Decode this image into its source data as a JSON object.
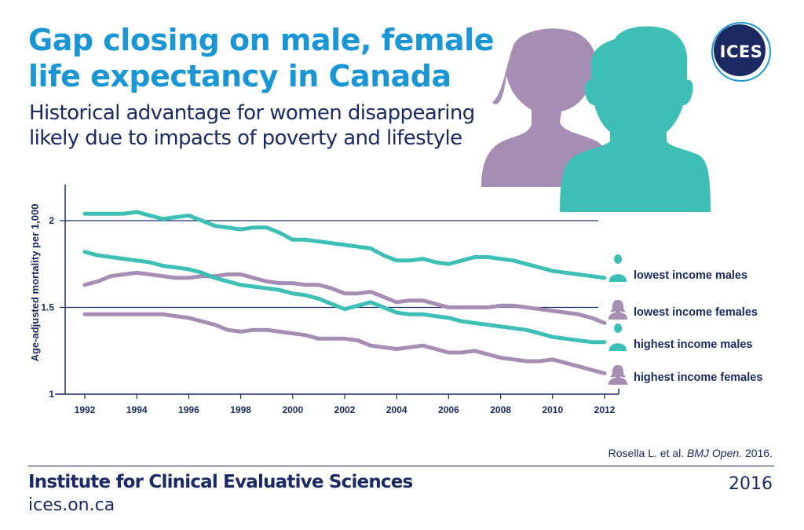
{
  "header": {
    "title_line1": "Gap closing on male, female",
    "title_line2": "life expectancy in Canada",
    "subtitle_line1": "Historical advantage for women disappearing",
    "subtitle_line2": "likely due to impacts of poverty and lifestyle"
  },
  "logo": {
    "text": "ICES"
  },
  "colors": {
    "teal": "#3dbfb5",
    "purple": "#a58db3",
    "navy": "#1b2a63",
    "title_blue": "#1a96d4"
  },
  "icons": {
    "female": "female-silhouette-icon",
    "male": "male-silhouette-icon"
  },
  "chart_data": {
    "type": "line",
    "xlabel": "",
    "ylabel": "Age-adjusted mortality per 1,000",
    "xlim": [
      1992,
      2012
    ],
    "ylim": [
      1,
      2.2
    ],
    "x_ticks": [
      "1992",
      "1994",
      "1996",
      "1998",
      "2000",
      "2002",
      "2004",
      "2006",
      "2008",
      "2010",
      "2012"
    ],
    "y_ticks": [
      "1",
      "1.5",
      "2"
    ],
    "gridlines_y": [
      1.5,
      2
    ],
    "legend_placement": "right",
    "series": [
      {
        "name": "lowest income males",
        "color": "#3dbfb5",
        "x": [
          1992,
          1992.5,
          1993,
          1993.5,
          1994,
          1994.5,
          1995,
          1995.5,
          1996,
          1996.5,
          1997,
          1997.5,
          1998,
          1998.5,
          1999,
          1999.5,
          2000,
          2000.5,
          2001,
          2001.5,
          2002,
          2002.5,
          2003,
          2003.5,
          2004,
          2004.5,
          2005,
          2005.5,
          2006,
          2006.5,
          2007,
          2007.5,
          2008,
          2008.5,
          2009,
          2009.5,
          2010,
          2010.5,
          2011,
          2011.5,
          2012
        ],
        "y": [
          2.04,
          2.04,
          2.04,
          2.04,
          2.05,
          2.03,
          2.01,
          2.02,
          2.03,
          2.0,
          1.97,
          1.96,
          1.95,
          1.96,
          1.96,
          1.93,
          1.89,
          1.89,
          1.88,
          1.87,
          1.86,
          1.85,
          1.84,
          1.8,
          1.77,
          1.77,
          1.78,
          1.76,
          1.75,
          1.77,
          1.79,
          1.79,
          1.78,
          1.77,
          1.75,
          1.73,
          1.71,
          1.7,
          1.69,
          1.68,
          1.67
        ]
      },
      {
        "name": "lowest income females",
        "color": "#a58db3",
        "x": [
          1992,
          1992.5,
          1993,
          1993.5,
          1994,
          1994.5,
          1995,
          1995.5,
          1996,
          1996.5,
          1997,
          1997.5,
          1998,
          1998.5,
          1999,
          1999.5,
          2000,
          2000.5,
          2001,
          2001.5,
          2002,
          2002.5,
          2003,
          2003.5,
          2004,
          2004.5,
          2005,
          2005.5,
          2006,
          2006.5,
          2007,
          2007.5,
          2008,
          2008.5,
          2009,
          2009.5,
          2010,
          2010.5,
          2011,
          2011.5,
          2012
        ],
        "y": [
          1.63,
          1.65,
          1.68,
          1.69,
          1.7,
          1.69,
          1.68,
          1.67,
          1.67,
          1.68,
          1.68,
          1.69,
          1.69,
          1.67,
          1.65,
          1.64,
          1.64,
          1.63,
          1.63,
          1.61,
          1.58,
          1.58,
          1.59,
          1.56,
          1.53,
          1.54,
          1.54,
          1.52,
          1.5,
          1.5,
          1.5,
          1.5,
          1.51,
          1.51,
          1.5,
          1.49,
          1.48,
          1.47,
          1.46,
          1.44,
          1.41
        ]
      },
      {
        "name": "highest income males",
        "color": "#3dbfb5",
        "x": [
          1992,
          1992.5,
          1993,
          1993.5,
          1994,
          1994.5,
          1995,
          1995.5,
          1996,
          1996.5,
          1997,
          1997.5,
          1998,
          1998.5,
          1999,
          1999.5,
          2000,
          2000.5,
          2001,
          2001.5,
          2002,
          2002.5,
          2003,
          2003.5,
          2004,
          2004.5,
          2005,
          2005.5,
          2006,
          2006.5,
          2007,
          2007.5,
          2008,
          2008.5,
          2009,
          2009.5,
          2010,
          2010.5,
          2011,
          2011.5,
          2012
        ],
        "y": [
          1.82,
          1.8,
          1.79,
          1.78,
          1.77,
          1.76,
          1.74,
          1.73,
          1.72,
          1.7,
          1.67,
          1.65,
          1.63,
          1.62,
          1.61,
          1.6,
          1.58,
          1.57,
          1.55,
          1.52,
          1.49,
          1.51,
          1.53,
          1.5,
          1.47,
          1.46,
          1.46,
          1.45,
          1.44,
          1.42,
          1.41,
          1.4,
          1.39,
          1.38,
          1.37,
          1.35,
          1.33,
          1.32,
          1.31,
          1.3,
          1.3
        ]
      },
      {
        "name": "highest income females",
        "color": "#a58db3",
        "x": [
          1992,
          1992.5,
          1993,
          1993.5,
          1994,
          1994.5,
          1995,
          1995.5,
          1996,
          1996.5,
          1997,
          1997.5,
          1998,
          1998.5,
          1999,
          1999.5,
          2000,
          2000.5,
          2001,
          2001.5,
          2002,
          2002.5,
          2003,
          2003.5,
          2004,
          2004.5,
          2005,
          2005.5,
          2006,
          2006.5,
          2007,
          2007.5,
          2008,
          2008.5,
          2009,
          2009.5,
          2010,
          2010.5,
          2011,
          2011.5,
          2012
        ],
        "y": [
          1.46,
          1.46,
          1.46,
          1.46,
          1.46,
          1.46,
          1.46,
          1.45,
          1.44,
          1.42,
          1.4,
          1.37,
          1.36,
          1.37,
          1.37,
          1.36,
          1.35,
          1.34,
          1.32,
          1.32,
          1.32,
          1.31,
          1.28,
          1.27,
          1.26,
          1.27,
          1.28,
          1.26,
          1.24,
          1.24,
          1.25,
          1.23,
          1.21,
          1.2,
          1.19,
          1.19,
          1.2,
          1.18,
          1.16,
          1.14,
          1.12
        ]
      }
    ]
  },
  "source": {
    "authors": "Rosella L. et al.",
    "journal": "BMJ Open.",
    "year": "2016."
  },
  "footer": {
    "org": "Institute for Clinical Evaluative Sciences",
    "site": "ices.on.ca",
    "year": "2016"
  }
}
